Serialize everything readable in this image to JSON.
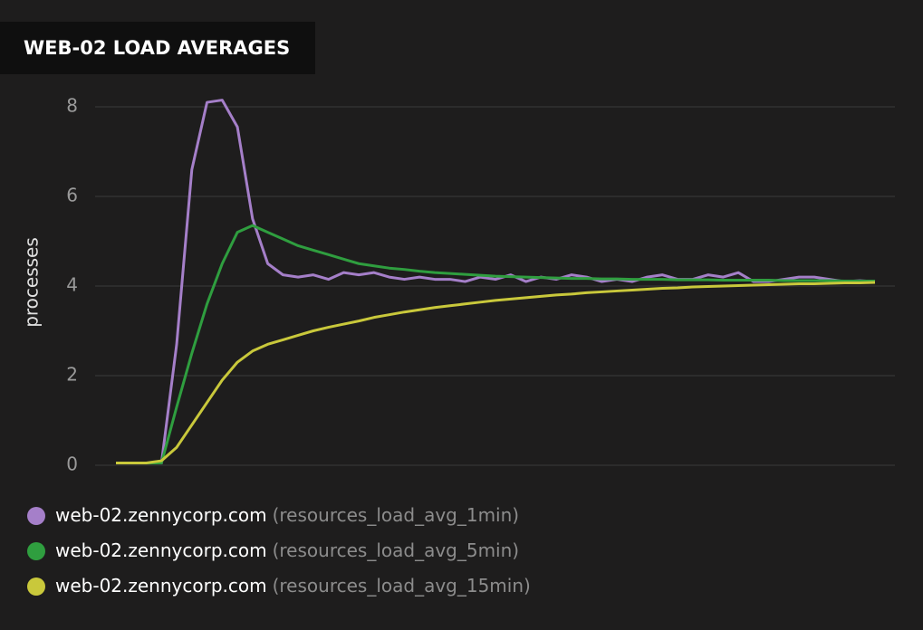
{
  "chart_data": {
    "type": "line",
    "title": "WEB-02 LOAD AVERAGES",
    "ylabel": "processes",
    "ylim": [
      0,
      8
    ],
    "yticks": [
      0,
      2,
      4,
      6,
      8
    ],
    "grid": true,
    "series": [
      {
        "name": "web-02.zennycorp.com",
        "metric": "(resources_load_avg_1min)",
        "color": "#a57fc9",
        "values": [
          0.05,
          0.05,
          0.05,
          0.05,
          2.7,
          6.6,
          8.1,
          8.15,
          7.55,
          5.5,
          4.5,
          4.25,
          4.2,
          4.25,
          4.15,
          4.3,
          4.25,
          4.3,
          4.2,
          4.15,
          4.2,
          4.15,
          4.15,
          4.1,
          4.2,
          4.15,
          4.25,
          4.1,
          4.2,
          4.15,
          4.25,
          4.2,
          4.1,
          4.15,
          4.1,
          4.2,
          4.25,
          4.15,
          4.15,
          4.25,
          4.2,
          4.3,
          4.1,
          4.1,
          4.15,
          4.2,
          4.2,
          4.15,
          4.1,
          4.12,
          4.1
        ]
      },
      {
        "name": "web-02.zennycorp.com",
        "metric": "(resources_load_avg_5min)",
        "color": "#2f9e3f",
        "values": [
          0.05,
          0.05,
          0.05,
          0.05,
          1.3,
          2.5,
          3.6,
          4.5,
          5.2,
          5.35,
          5.2,
          5.05,
          4.9,
          4.8,
          4.7,
          4.6,
          4.5,
          4.45,
          4.4,
          4.37,
          4.33,
          4.3,
          4.28,
          4.26,
          4.24,
          4.22,
          4.21,
          4.2,
          4.19,
          4.18,
          4.17,
          4.17,
          4.16,
          4.16,
          4.15,
          4.15,
          4.15,
          4.14,
          4.14,
          4.14,
          4.13,
          4.13,
          4.13,
          4.13,
          4.12,
          4.12,
          4.12,
          4.12,
          4.11,
          4.11,
          4.11
        ]
      },
      {
        "name": "web-02.zennycorp.com",
        "metric": "(resources_load_avg_15min)",
        "color": "#c9c83b",
        "values": [
          0.05,
          0.05,
          0.05,
          0.1,
          0.4,
          0.9,
          1.4,
          1.9,
          2.3,
          2.55,
          2.7,
          2.8,
          2.9,
          3.0,
          3.08,
          3.15,
          3.22,
          3.3,
          3.36,
          3.42,
          3.47,
          3.52,
          3.56,
          3.6,
          3.64,
          3.68,
          3.71,
          3.74,
          3.77,
          3.8,
          3.82,
          3.85,
          3.87,
          3.89,
          3.91,
          3.93,
          3.95,
          3.96,
          3.98,
          3.99,
          4.0,
          4.01,
          4.02,
          4.03,
          4.04,
          4.05,
          4.05,
          4.06,
          4.07,
          4.07,
          4.08
        ]
      }
    ]
  }
}
